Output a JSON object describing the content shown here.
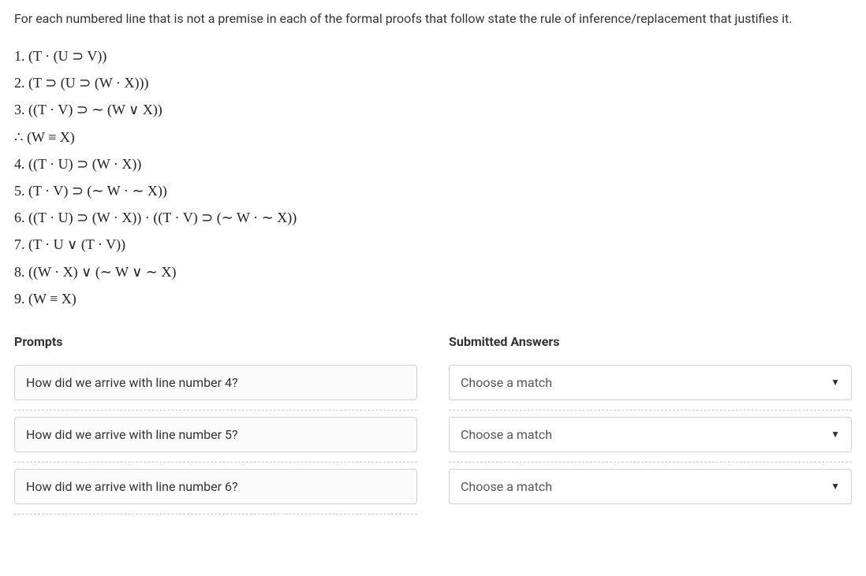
{
  "question": "For each numbered line that is not a premise in each of the formal proofs that follow state the rule of inference/replacement that justifies it.",
  "proof": {
    "lines": [
      "1. (T · (U ⊃ V))",
      "2. (T ⊃ (U ⊃ (W · X)))",
      "3. ((T · V) ⊃ ∼ (W ∨ X))",
      "∴ (W ≡ X)",
      "4. ((T · U) ⊃ (W · X))",
      "5. (T · V) ⊃ (∼ W · ∼ X))",
      "6. ((T · U) ⊃ (W · X)) · ((T · V) ⊃ (∼ W · ∼ X))",
      "7. (T · U ∨ (T · V))",
      "8. ((W · X) ∨ (∼ W ∨ ∼ X)",
      "9. (W ≡ X)"
    ]
  },
  "headers": {
    "prompts": "Prompts",
    "answers": "Submitted Answers"
  },
  "rows": [
    {
      "prompt": "How did we arrive with line number 4?",
      "selected": "Choose a match"
    },
    {
      "prompt": "How did we arrive with line number 5?",
      "selected": "Choose a match"
    },
    {
      "prompt": "How did we arrive with line number 6?",
      "selected": "Choose a match"
    }
  ],
  "style": {
    "body_font": "sans-serif",
    "proof_font": "Times New Roman",
    "text_color": "#333333",
    "border_color": "#d0d0d0",
    "dashed_color": "#c8c8c8",
    "prompt_bg": "#fbfbfb",
    "select_bg": "#ffffff",
    "page_bg": "#ffffff"
  }
}
